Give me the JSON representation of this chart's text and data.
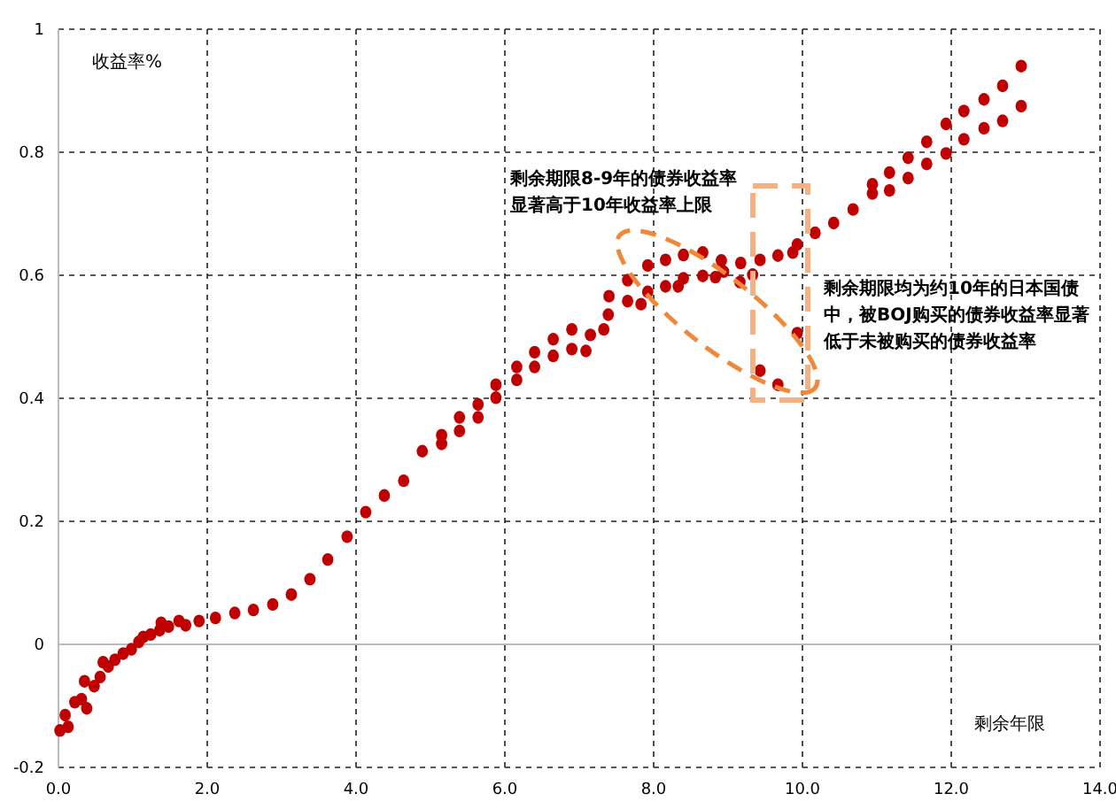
{
  "chart_data": {
    "type": "scatter",
    "xlabel": "剩余年限",
    "ylabel": "收益率%",
    "xlim": [
      0,
      14
    ],
    "ylim": [
      -0.2,
      1
    ],
    "xticks": [
      {
        "value": 0,
        "label": "0.0"
      },
      {
        "value": 2,
        "label": "2.0"
      },
      {
        "value": 4,
        "label": "4.0"
      },
      {
        "value": 6,
        "label": "6.0"
      },
      {
        "value": 8,
        "label": "8.0"
      },
      {
        "value": 10,
        "label": "10.0"
      },
      {
        "value": 12,
        "label": "12.0"
      },
      {
        "value": 14,
        "label": "14.0"
      }
    ],
    "yticks": [
      -0.2,
      0,
      0.2,
      0.4,
      0.6,
      0.8,
      1
    ],
    "grid": true,
    "marker": "circle",
    "annotations": [
      "剩余期限8-9年的债券收益率显著高于10年收益率上限",
      "剩余期限均为约10年的日本国债中，被BOJ购买的债券收益率显著低于未被购买的债券收益率"
    ],
    "series": [
      {
        "color": "#c00000",
        "x": [
          0.02,
          0.09,
          0.13,
          0.22,
          0.31,
          0.35,
          0.38,
          0.48,
          0.56,
          0.6,
          0.67,
          0.76,
          0.87,
          0.98,
          1.08,
          1.14,
          1.24,
          1.36,
          1.38,
          1.48,
          1.62,
          1.71,
          1.89,
          2.11,
          2.37,
          2.62,
          2.88,
          3.13,
          3.38,
          3.62,
          3.88,
          4.13,
          4.38,
          4.64,
          4.89,
          5.15,
          5.15,
          5.39,
          5.39,
          5.64,
          5.64,
          5.88,
          5.88,
          6.16,
          6.16,
          6.4,
          6.4,
          6.65,
          6.65,
          6.9,
          6.9,
          7.09,
          7.15,
          7.33,
          7.39,
          7.4,
          7.65,
          7.65,
          7.83,
          7.92,
          7.92,
          8.16,
          8.16,
          8.33,
          8.4,
          8.4,
          8.66,
          8.66,
          8.83,
          8.91,
          8.94,
          9.16,
          9.17,
          9.33,
          9.43,
          9.43,
          9.67,
          9.67,
          9.87,
          9.93,
          9.93,
          10.17,
          10.42,
          10.68,
          10.94,
          10.94,
          11.17,
          11.17,
          11.42,
          11.42,
          11.67,
          11.67,
          11.93,
          11.93,
          12.17,
          12.17,
          12.44,
          12.44,
          12.69,
          12.69,
          12.94,
          12.94
        ],
        "values": [
          -0.14,
          -0.115,
          -0.134,
          -0.094,
          -0.089,
          -0.06,
          -0.104,
          -0.068,
          -0.053,
          -0.029,
          -0.036,
          -0.025,
          -0.015,
          -0.008,
          0.004,
          0.012,
          0.016,
          0.023,
          0.035,
          0.029,
          0.038,
          0.031,
          0.038,
          0.043,
          0.051,
          0.056,
          0.065,
          0.081,
          0.106,
          0.138,
          0.175,
          0.215,
          0.242,
          0.266,
          0.314,
          0.34,
          0.326,
          0.369,
          0.347,
          0.39,
          0.369,
          0.422,
          0.401,
          0.451,
          0.43,
          0.475,
          0.451,
          0.496,
          0.469,
          0.512,
          0.48,
          0.477,
          0.503,
          0.512,
          0.536,
          0.566,
          0.558,
          0.592,
          0.553,
          0.573,
          0.616,
          0.625,
          0.582,
          0.582,
          0.633,
          0.595,
          0.637,
          0.599,
          0.597,
          0.624,
          0.606,
          0.589,
          0.62,
          0.601,
          0.625,
          0.445,
          0.632,
          0.422,
          0.637,
          0.65,
          0.506,
          0.669,
          0.685,
          0.707,
          0.733,
          0.748,
          0.738,
          0.767,
          0.758,
          0.791,
          0.781,
          0.817,
          0.798,
          0.846,
          0.821,
          0.867,
          0.839,
          0.886,
          0.851,
          0.908,
          0.875,
          0.94
        ]
      }
    ]
  }
}
